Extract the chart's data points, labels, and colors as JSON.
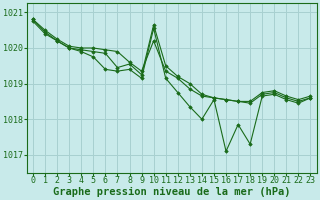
{
  "background_color": "#c8eaea",
  "grid_color": "#a8d0d0",
  "line_color": "#1a6b1a",
  "marker_color": "#1a6b1a",
  "title": "Graphe pression niveau de la mer (hPa)",
  "title_fontsize": 7.5,
  "tick_fontsize": 6,
  "xlim": [
    -0.5,
    23.5
  ],
  "ylim": [
    1016.5,
    1021.25
  ],
  "yticks": [
    1017,
    1018,
    1019,
    1020,
    1021
  ],
  "xticks": [
    0,
    1,
    2,
    3,
    4,
    5,
    6,
    7,
    8,
    9,
    10,
    11,
    12,
    13,
    14,
    15,
    16,
    17,
    18,
    19,
    20,
    21,
    22,
    23
  ],
  "series1": {
    "x": [
      0,
      1,
      2,
      3,
      4,
      5,
      6,
      7,
      8,
      9,
      10,
      11,
      12,
      13,
      14,
      15,
      16,
      17,
      18,
      19,
      20,
      21,
      22,
      23
    ],
    "y": [
      1020.8,
      1020.5,
      1020.25,
      1020.05,
      1020.0,
      1020.0,
      1019.95,
      1019.9,
      1019.6,
      1019.35,
      1020.2,
      1019.35,
      1019.15,
      1018.85,
      1018.65,
      1018.6,
      1018.55,
      1018.5,
      1018.5,
      1018.75,
      1018.8,
      1018.65,
      1018.55,
      1018.65
    ]
  },
  "series2": {
    "x": [
      0,
      1,
      2,
      3,
      4,
      5,
      6,
      7,
      8,
      9,
      10,
      11,
      12,
      13,
      14,
      15,
      16,
      17,
      18,
      19,
      20,
      21,
      22,
      23
    ],
    "y": [
      1020.8,
      1020.45,
      1020.2,
      1020.0,
      1019.95,
      1019.9,
      1019.85,
      1019.45,
      1019.55,
      1019.25,
      1020.65,
      1019.5,
      1019.2,
      1019.0,
      1018.7,
      1018.6,
      1018.55,
      1018.5,
      1018.45,
      1018.7,
      1018.75,
      1018.6,
      1018.5,
      1018.6
    ]
  },
  "series3": {
    "x": [
      0,
      1,
      2,
      3,
      4,
      5,
      6,
      7,
      8,
      9,
      10,
      11,
      12,
      13,
      14,
      15,
      16,
      17,
      18,
      19,
      20,
      21,
      22,
      23
    ],
    "y": [
      1020.75,
      1020.4,
      1020.2,
      1020.0,
      1019.9,
      1019.75,
      1019.4,
      1019.35,
      1019.4,
      1019.15,
      1020.55,
      1019.15,
      1018.75,
      1018.35,
      1018.0,
      1018.55,
      1017.1,
      1017.85,
      1017.3,
      1018.65,
      1018.7,
      1018.55,
      1018.45,
      1018.6
    ]
  }
}
